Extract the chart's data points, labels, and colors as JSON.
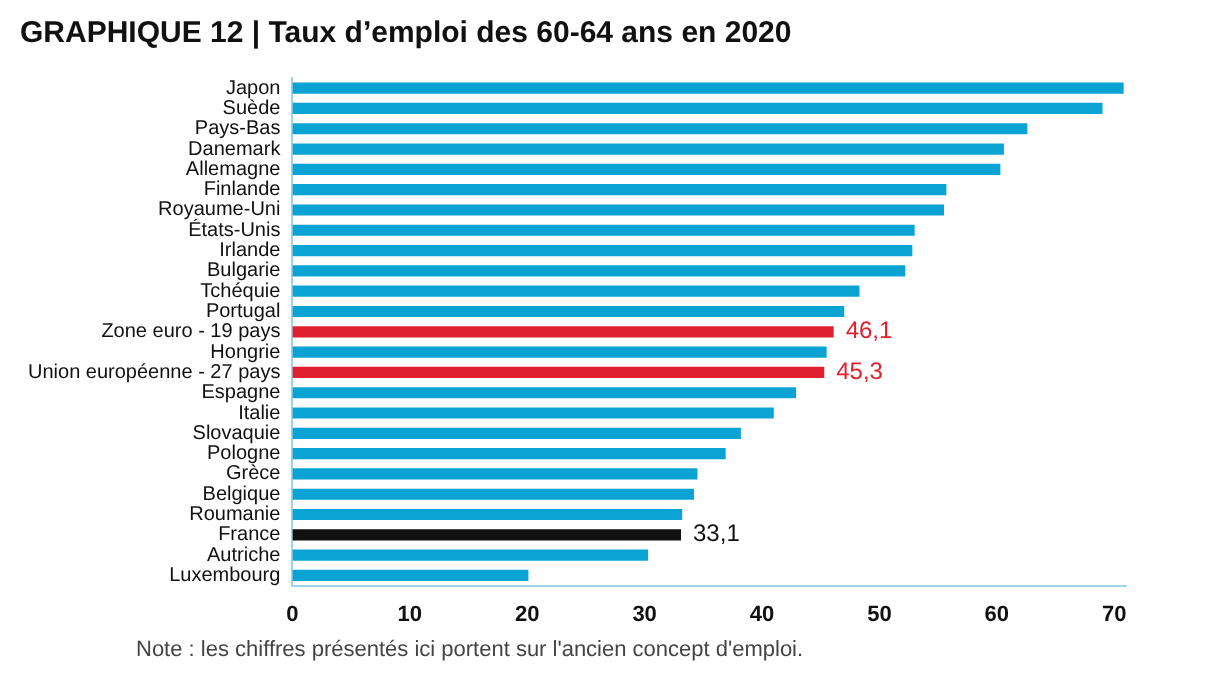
{
  "chart_data": {
    "type": "bar",
    "orientation": "horizontal",
    "title": "GRAPHIQUE 12 | Taux d’emploi des 60-64 ans en 2020",
    "categories": [
      "Japon",
      "Suède",
      "Pays-Bas",
      "Danemark",
      "Allemagne",
      "Finlande",
      "Royaume-Uni",
      "États-Unis",
      "Irlande",
      "Bulgarie",
      "Tchéquie",
      "Portugal",
      "Zone euro - 19 pays",
      "Hongrie",
      "Union européenne - 27 pays",
      "Espagne",
      "Italie",
      "Slovaquie",
      "Pologne",
      "Grèce",
      "Belgique",
      "Roumanie",
      "France",
      "Autriche",
      "Luxembourg"
    ],
    "values": [
      70.8,
      69.0,
      62.6,
      60.6,
      60.3,
      55.7,
      55.5,
      53.0,
      52.8,
      52.2,
      48.3,
      47.0,
      46.1,
      45.5,
      45.3,
      42.9,
      41.0,
      38.2,
      36.9,
      34.5,
      34.2,
      33.2,
      33.1,
      30.3,
      20.1
    ],
    "colors": [
      "#0aa3d3",
      "#0aa3d3",
      "#0aa3d3",
      "#0aa3d3",
      "#0aa3d3",
      "#0aa3d3",
      "#0aa3d3",
      "#0aa3d3",
      "#0aa3d3",
      "#0aa3d3",
      "#0aa3d3",
      "#0aa3d3",
      "#e0202e",
      "#0aa3d3",
      "#e0202e",
      "#0aa3d3",
      "#0aa3d3",
      "#0aa3d3",
      "#0aa3d3",
      "#0aa3d3",
      "#0aa3d3",
      "#0aa3d3",
      "#111111",
      "#0aa3d3",
      "#0aa3d3"
    ],
    "value_labels": [
      null,
      null,
      null,
      null,
      null,
      null,
      null,
      null,
      null,
      null,
      null,
      null,
      "46,1",
      null,
      "45,3",
      null,
      null,
      null,
      null,
      null,
      null,
      null,
      "33,1",
      null,
      null
    ],
    "xlim": [
      0,
      71
    ],
    "xticks": [
      0,
      10,
      20,
      30,
      40,
      50,
      60,
      70
    ],
    "grid": false,
    "legend": false,
    "annotations": [
      "Note : les chiffres présentés ici portent sur l'ancien concept d'emploi."
    ]
  }
}
